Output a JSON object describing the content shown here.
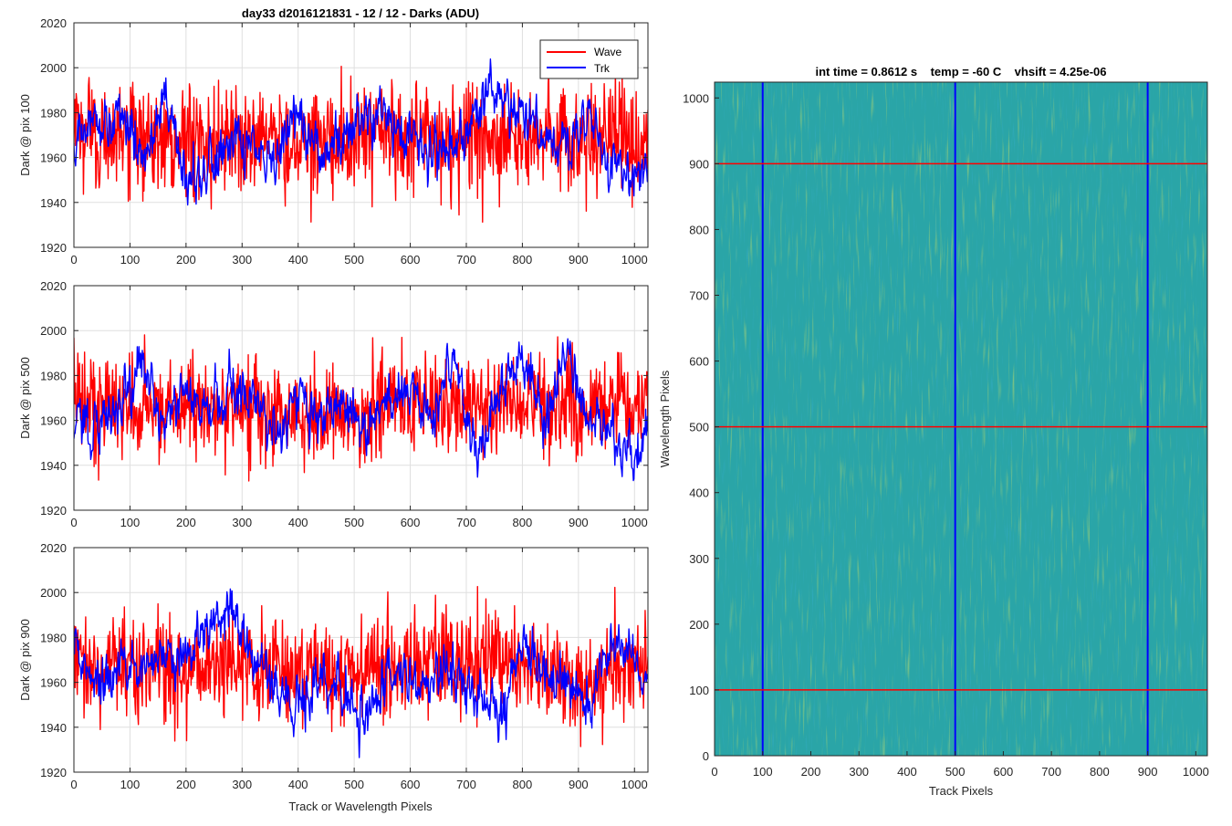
{
  "chart_data": [
    {
      "type": "line",
      "panel": "top-left",
      "title": "day33 d2016121831 - 12 / 12 - Darks (ADU)",
      "xlabel": "",
      "ylabel": "Dark @ pix 100",
      "xlim": [
        0,
        1024
      ],
      "ylim": [
        1920,
        2020
      ],
      "xticks": [
        0,
        100,
        200,
        300,
        400,
        500,
        600,
        700,
        800,
        900,
        1000
      ],
      "yticks": [
        1920,
        1940,
        1960,
        1980,
        2000,
        2020
      ],
      "grid": true,
      "legend": {
        "placement": "top-right",
        "entries": [
          "Wave",
          "Trk"
        ]
      },
      "series": [
        {
          "name": "Wave",
          "color": "#ff0000",
          "mean": 1968,
          "noise_sd": 12,
          "drift_amp": 3,
          "x": [
            0,
            50,
            100,
            150,
            200,
            250,
            300,
            350,
            400,
            450,
            500,
            550,
            600,
            650,
            700,
            750,
            800,
            850,
            900,
            950,
            1024
          ],
          "values": [
            1972,
            1970,
            1968,
            1967,
            1969,
            1968,
            1970,
            1968,
            1967,
            1969,
            1968,
            1970,
            1968,
            1967,
            1969,
            1968,
            1970,
            1968,
            1967,
            1966,
            1968
          ]
        },
        {
          "name": "Trk",
          "color": "#0000ff",
          "mean": 1966,
          "noise_sd": 5,
          "x": [
            0,
            40,
            80,
            120,
            160,
            200,
            240,
            280,
            320,
            360,
            400,
            440,
            480,
            520,
            560,
            600,
            640,
            680,
            720,
            760,
            800,
            840,
            880,
            920,
            960,
            1000,
            1024
          ],
          "values": [
            1968,
            1974,
            1980,
            1962,
            1985,
            1948,
            1955,
            1968,
            1962,
            1955,
            1980,
            1962,
            1968,
            1978,
            1975,
            1968,
            1965,
            1965,
            1978,
            1990,
            1978,
            1968,
            1962,
            1980,
            1955,
            1950,
            1955
          ]
        }
      ]
    },
    {
      "type": "line",
      "panel": "middle-left",
      "xlabel": "",
      "ylabel": "Dark @ pix 500",
      "xlim": [
        0,
        1024
      ],
      "ylim": [
        1920,
        2020
      ],
      "xticks": [
        0,
        100,
        200,
        300,
        400,
        500,
        600,
        700,
        800,
        900,
        1000
      ],
      "yticks": [
        1920,
        1940,
        1960,
        1980,
        2000,
        2020
      ],
      "grid": true,
      "series": [
        {
          "name": "Wave",
          "color": "#ff0000",
          "mean": 1966,
          "noise_sd": 11,
          "drift_amp": 3,
          "x": [
            0,
            100,
            200,
            300,
            400,
            500,
            600,
            700,
            800,
            900,
            1024
          ],
          "values": [
            1968,
            1966,
            1965,
            1967,
            1964,
            1963,
            1968,
            1968,
            1967,
            1965,
            1966
          ]
        },
        {
          "name": "Trk",
          "color": "#0000ff",
          "mean": 1963,
          "noise_sd": 5,
          "x": [
            0,
            40,
            80,
            120,
            160,
            200,
            240,
            280,
            320,
            360,
            400,
            440,
            480,
            520,
            560,
            600,
            640,
            680,
            720,
            760,
            800,
            840,
            880,
            920,
            960,
            1000,
            1024
          ],
          "values": [
            1962,
            1958,
            1968,
            1985,
            1960,
            1968,
            1965,
            1970,
            1972,
            1955,
            1975,
            1965,
            1970,
            1960,
            1968,
            1975,
            1962,
            1985,
            1945,
            1975,
            1985,
            1962,
            1990,
            1960,
            1948,
            1945,
            1955
          ]
        }
      ]
    },
    {
      "type": "line",
      "panel": "bottom-left",
      "xlabel": "Track or Wavelength Pixels",
      "ylabel": "Dark @ pix 900",
      "xlim": [
        0,
        1024
      ],
      "ylim": [
        1920,
        2020
      ],
      "xticks": [
        0,
        100,
        200,
        300,
        400,
        500,
        600,
        700,
        800,
        900,
        1000
      ],
      "yticks": [
        1920,
        1940,
        1960,
        1980,
        2000,
        2020
      ],
      "grid": true,
      "series": [
        {
          "name": "Wave",
          "color": "#ff0000",
          "mean": 1966,
          "noise_sd": 11,
          "drift_amp": 3,
          "x": [
            0,
            100,
            200,
            300,
            400,
            500,
            600,
            700,
            800,
            900,
            1024
          ],
          "values": [
            1970,
            1966,
            1965,
            1967,
            1963,
            1964,
            1968,
            1972,
            1968,
            1962,
            1966
          ]
        },
        {
          "name": "Trk",
          "color": "#0000ff",
          "mean": 1963,
          "noise_sd": 5,
          "x": [
            0,
            40,
            80,
            120,
            160,
            200,
            240,
            280,
            320,
            360,
            400,
            440,
            480,
            520,
            560,
            600,
            640,
            680,
            720,
            760,
            800,
            840,
            880,
            920,
            960,
            1000,
            1024
          ],
          "values": [
            1975,
            1958,
            1965,
            1965,
            1972,
            1975,
            1980,
            1992,
            1972,
            1960,
            1950,
            1960,
            1958,
            1942,
            1962,
            1960,
            1962,
            1968,
            1955,
            1945,
            1980,
            1962,
            1960,
            1950,
            1978,
            1968,
            1958
          ]
        }
      ]
    },
    {
      "type": "heatmap",
      "panel": "right",
      "title": "int time = 0.8612 s    temp = -60 C    vhsift = 4.25e-06",
      "xlabel": "Track Pixels",
      "ylabel": "Wavelength Pixels",
      "xlim": [
        0,
        1024
      ],
      "ylim": [
        0,
        1024
      ],
      "xticks": [
        0,
        100,
        200,
        300,
        400,
        500,
        600,
        700,
        800,
        900,
        1000
      ],
      "yticks": [
        0,
        100,
        200,
        300,
        400,
        500,
        600,
        700,
        800,
        900,
        1000
      ],
      "colormap": "parula (blue-green-yellow)",
      "base_color": "#2aa5a7",
      "vertical_lines": {
        "color": "#0000ff",
        "x": [
          100,
          500,
          900
        ]
      },
      "horizontal_lines": {
        "color": "#ff0000",
        "y": [
          100,
          500,
          900
        ]
      }
    }
  ]
}
